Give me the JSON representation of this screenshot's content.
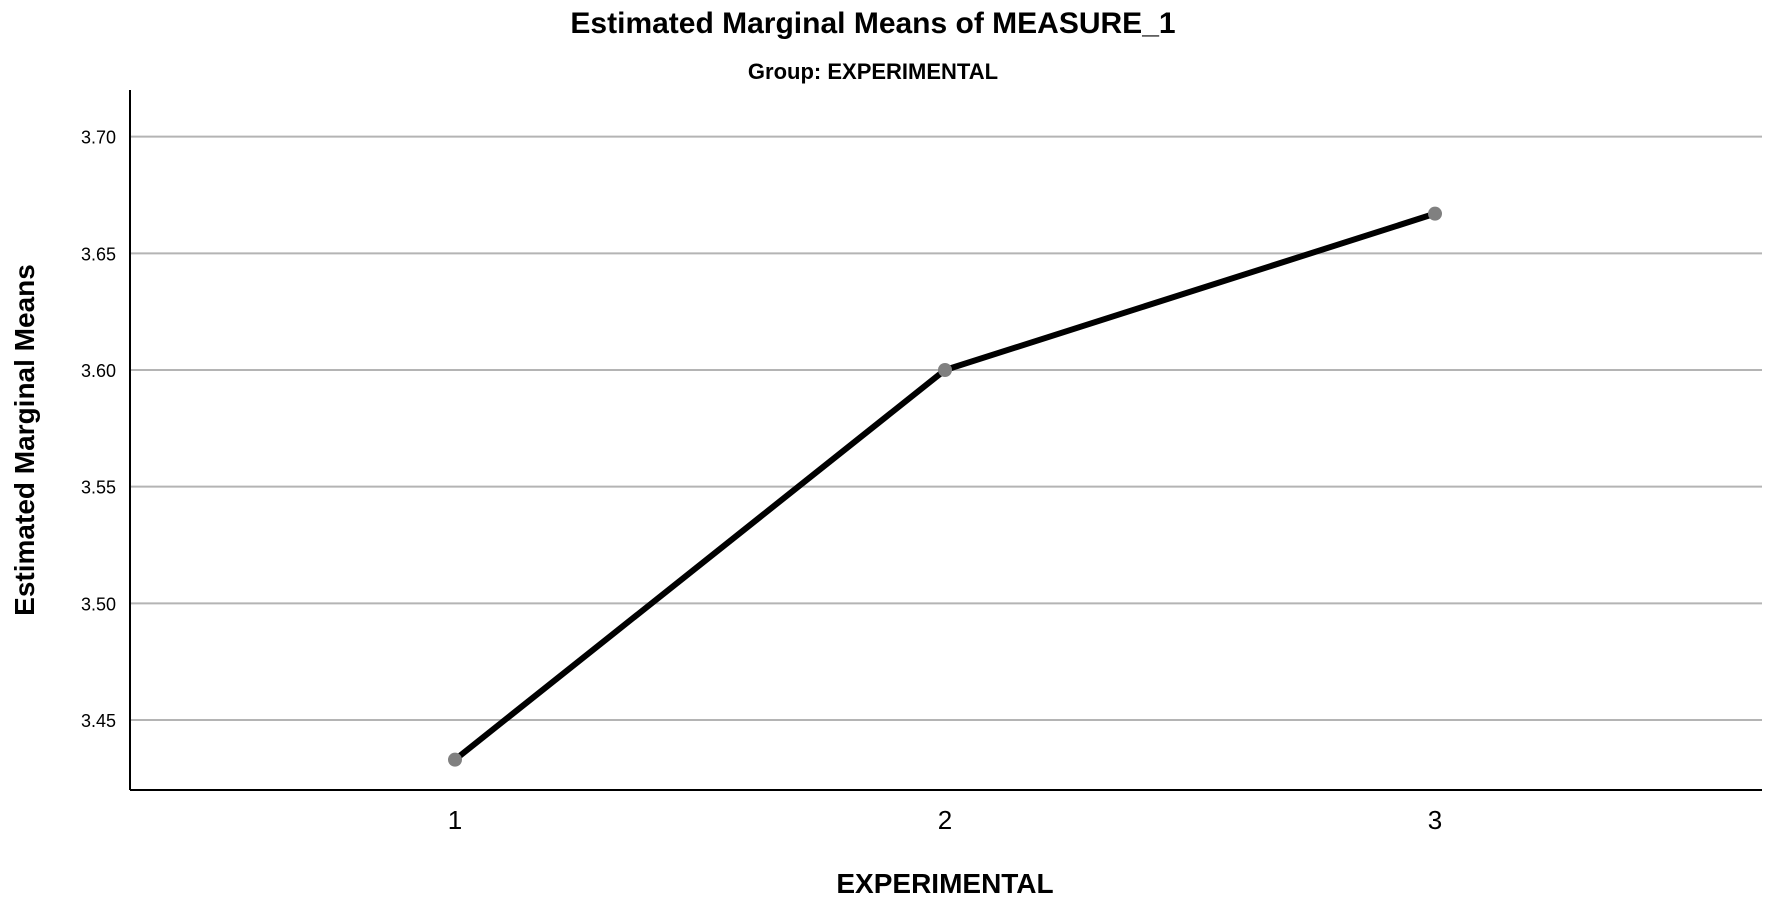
{
  "chart_data": {
    "type": "line",
    "title": "Estimated Marginal Means of MEASURE_1",
    "subtitle": "Group: EXPERIMENTAL",
    "xlabel": "EXPERIMENTAL",
    "ylabel": "Estimated Marginal Means",
    "categories": [
      "1",
      "2",
      "3"
    ],
    "values": [
      3.433,
      3.6,
      3.667
    ],
    "ylim": [
      3.42,
      3.72
    ],
    "yticks": [
      "3.45",
      "3.50",
      "3.55",
      "3.60",
      "3.65",
      "3.70"
    ],
    "grid": true,
    "legend": "none",
    "colors": {
      "line": "#000000",
      "marker": "#808080",
      "grid": "#b4b4b4",
      "axis": "#000000"
    }
  }
}
